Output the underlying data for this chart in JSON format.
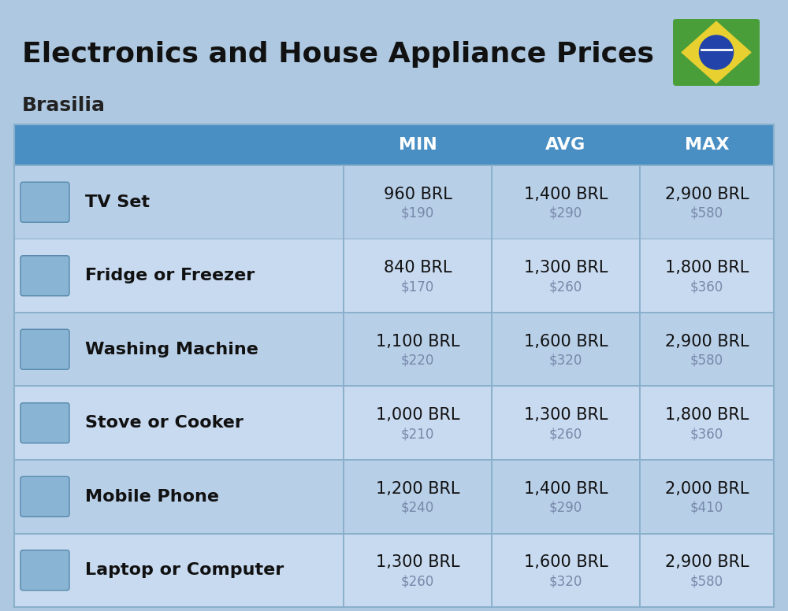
{
  "title": "Electronics and House Appliance Prices",
  "subtitle": "Brasilia",
  "title_fontsize": 26,
  "subtitle_fontsize": 18,
  "bg_color": "#adc8e0",
  "header_color": "#4a8fc4",
  "row_bg_even": "#b8cfe8",
  "row_bg_odd": "#c8daf0",
  "divider_color": "#8ab0cc",
  "col_header_labels": [
    "MIN",
    "AVG",
    "MAX"
  ],
  "items": [
    {
      "name": "TV Set",
      "min_brl": "960 BRL",
      "min_usd": "$190",
      "avg_brl": "1,400 BRL",
      "avg_usd": "$290",
      "max_brl": "2,900 BRL",
      "max_usd": "$580"
    },
    {
      "name": "Fridge or Freezer",
      "min_brl": "840 BRL",
      "min_usd": "$170",
      "avg_brl": "1,300 BRL",
      "avg_usd": "$260",
      "max_brl": "1,800 BRL",
      "max_usd": "$360"
    },
    {
      "name": "Washing Machine",
      "min_brl": "1,100 BRL",
      "min_usd": "$220",
      "avg_brl": "1,600 BRL",
      "avg_usd": "$320",
      "max_brl": "2,900 BRL",
      "max_usd": "$580"
    },
    {
      "name": "Stove or Cooker",
      "min_brl": "1,000 BRL",
      "min_usd": "$210",
      "avg_brl": "1,300 BRL",
      "avg_usd": "$260",
      "max_brl": "1,800 BRL",
      "max_usd": "$360"
    },
    {
      "name": "Mobile Phone",
      "min_brl": "1,200 BRL",
      "min_usd": "$240",
      "avg_brl": "1,400 BRL",
      "avg_usd": "$290",
      "max_brl": "2,000 BRL",
      "max_usd": "$410"
    },
    {
      "name": "Laptop or Computer",
      "min_brl": "1,300 BRL",
      "min_usd": "$260",
      "avg_brl": "1,600 BRL",
      "avg_usd": "$320",
      "max_brl": "2,900 BRL",
      "max_usd": "$580"
    }
  ],
  "value_fontsize": 15,
  "name_fontsize": 16,
  "usd_fontsize": 12,
  "usd_color": "#7788aa",
  "header_label_fontsize": 16
}
